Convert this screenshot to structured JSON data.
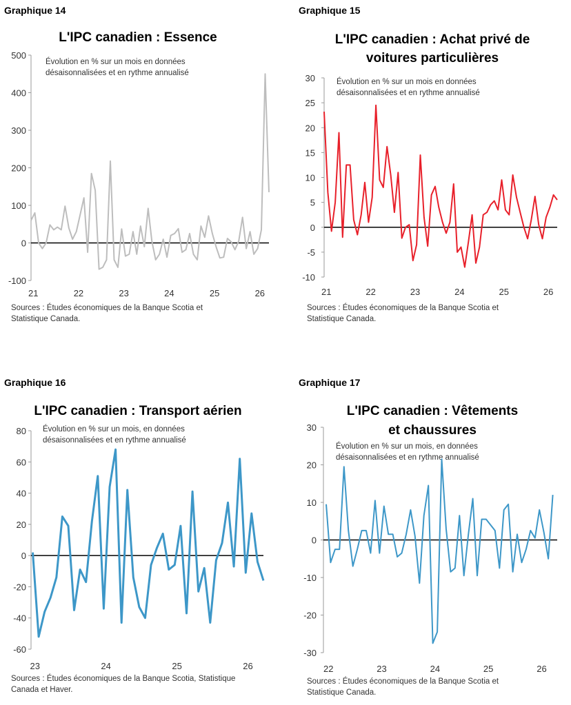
{
  "chart_data": [
    {
      "panel_label": "Graphique 14",
      "type": "line",
      "title": "L'IPC canadien : Essence",
      "subtitle": [
        "Évolution en % sur un mois en données",
        "désaisonnalisées et en rythme annualisé"
      ],
      "ylim": [
        -100,
        500
      ],
      "yticks": [
        -100,
        0,
        100,
        200,
        300,
        400,
        500
      ],
      "xticks": [
        {
          "v": 0,
          "label": "21"
        },
        {
          "v": 12,
          "label": "22"
        },
        {
          "v": 24,
          "label": "23"
        },
        {
          "v": 36,
          "label": "24"
        },
        {
          "v": 48,
          "label": "25"
        },
        {
          "v": 60,
          "label": "26"
        }
      ],
      "color": "#bdbdbd",
      "source": [
        "Sources : Études économiques de la Banque Scotia et",
        "Statistique Canada."
      ],
      "series": [
        {
          "values": [
            60,
            80,
            0,
            -15,
            0,
            48,
            35,
            42,
            35,
            98,
            40,
            10,
            30,
            75,
            120,
            -25,
            185,
            140,
            -70,
            -65,
            -45,
            218,
            -45,
            -65,
            37,
            -35,
            -30,
            30,
            -30,
            45,
            -10,
            92,
            5,
            -45,
            -30,
            10,
            -38,
            20,
            25,
            38,
            -25,
            -18,
            25,
            -30,
            -45,
            45,
            15,
            72,
            25,
            -10,
            -40,
            -38,
            12,
            3,
            -18,
            5,
            68,
            -15,
            30,
            -30,
            -15,
            35,
            450,
            135
          ]
        }
      ]
    },
    {
      "panel_label": "Graphique 15",
      "type": "line",
      "title": [
        "L'IPC canadien : Achat privé de",
        "voitures particulières"
      ],
      "subtitle": [
        "Évolution en % sur un mois en données",
        "désaisonnalisées et en rythme annualisé"
      ],
      "ylim": [
        -10,
        30
      ],
      "yticks": [
        -10,
        -5,
        0,
        5,
        10,
        15,
        20,
        25,
        30
      ],
      "xticks": [
        {
          "v": 0,
          "label": "21"
        },
        {
          "v": 12,
          "label": "22"
        },
        {
          "v": 24,
          "label": "23"
        },
        {
          "v": 36,
          "label": "24"
        },
        {
          "v": 48,
          "label": "25"
        },
        {
          "v": 60,
          "label": "26"
        }
      ],
      "color": "#e8202a",
      "source": [
        "Sources : Études économiques de la Banque Scotia et",
        "Statistique Canada."
      ],
      "series": [
        {
          "values": [
            23.2,
            7,
            -0.8,
            5,
            19,
            -2,
            12.5,
            12.5,
            1.5,
            -1.5,
            2.5,
            9,
            1,
            6,
            24.5,
            9.5,
            8,
            16.2,
            10.5,
            3,
            11,
            -2.2,
            0,
            0.5,
            -6.7,
            -3.5,
            14.5,
            2,
            -3.8,
            6.5,
            8.2,
            4,
            1,
            -1.2,
            1,
            8.7,
            -5,
            -4,
            -8,
            -3,
            2.5,
            -7.2,
            -4,
            2.5,
            3,
            4.5,
            5.3,
            3.5,
            9.5,
            3.5,
            2.5,
            10.5,
            6,
            3,
            0,
            -2.3,
            1.5,
            6.2,
            0.5,
            -2.3,
            2,
            4,
            6.5,
            5.5
          ]
        }
      ]
    },
    {
      "panel_label": "Graphique 16",
      "type": "line",
      "title": "L'IPC canadien : Transport aérien",
      "subtitle": [
        "Évolution en % sur un mois, en données",
        "désaisonnalisées et en rythme annualisé"
      ],
      "ylim": [
        -60,
        80
      ],
      "yticks": [
        -60,
        -40,
        -20,
        0,
        20,
        40,
        60,
        80
      ],
      "xticks": [
        {
          "v": 0,
          "label": "23"
        },
        {
          "v": 12,
          "label": "24"
        },
        {
          "v": 24,
          "label": "25"
        },
        {
          "v": 36,
          "label": "26"
        }
      ],
      "color": "#3d97c8",
      "source": [
        "Sources : Études économiques de la Banque Scotia, Statistique",
        "Canada et Haver."
      ],
      "series": [
        {
          "values": [
            2,
            -52,
            -36,
            -27,
            -14,
            25,
            19,
            -35,
            -9,
            -17,
            22,
            51,
            -34,
            44,
            68,
            -43,
            42,
            -14,
            -33,
            -40,
            -6,
            5,
            14,
            -9,
            -6,
            19,
            -37,
            41,
            -23,
            -8,
            -43,
            -3,
            8,
            34,
            -7,
            62,
            -11,
            27,
            -4,
            -16
          ]
        }
      ]
    },
    {
      "panel_label": "Graphique 17",
      "type": "line",
      "title": [
        "L'IPC canadien : Vêtements",
        "et chaussures"
      ],
      "subtitle": [
        "Évolution en % sur un mois, en données",
        "désaisonnalisées et en rythme annualisé"
      ],
      "ylim": [
        -30,
        30
      ],
      "yticks": [
        -30,
        -20,
        -10,
        0,
        10,
        20,
        30
      ],
      "xticks": [
        {
          "v": 0,
          "label": "22"
        },
        {
          "v": 12,
          "label": "23"
        },
        {
          "v": 24,
          "label": "24"
        },
        {
          "v": 36,
          "label": "25"
        },
        {
          "v": 48,
          "label": "26"
        }
      ],
      "color": "#3d97c8",
      "source": [
        "Sources : Études économiques de la Banque Scotia et",
        "Statistique Canada."
      ],
      "series": [
        {
          "values": [
            9.5,
            -6,
            -2.5,
            -2.5,
            19.5,
            2.5,
            -7,
            -2.5,
            2.5,
            2.5,
            -3.5,
            10.5,
            -3.5,
            9,
            1.5,
            1.5,
            -4.5,
            -3.5,
            1.5,
            8,
            1,
            -11.5,
            6.5,
            14.5,
            -27.5,
            -24.5,
            21.5,
            3,
            -8.5,
            -7.5,
            6.5,
            -9.5,
            1.5,
            11,
            -9.5,
            5.5,
            5.5,
            4,
            2.5,
            -7.5,
            8,
            9.5,
            -8.5,
            1.5,
            -6,
            -2.5,
            2.5,
            0.5,
            8,
            2,
            -5,
            12
          ]
        }
      ]
    }
  ]
}
